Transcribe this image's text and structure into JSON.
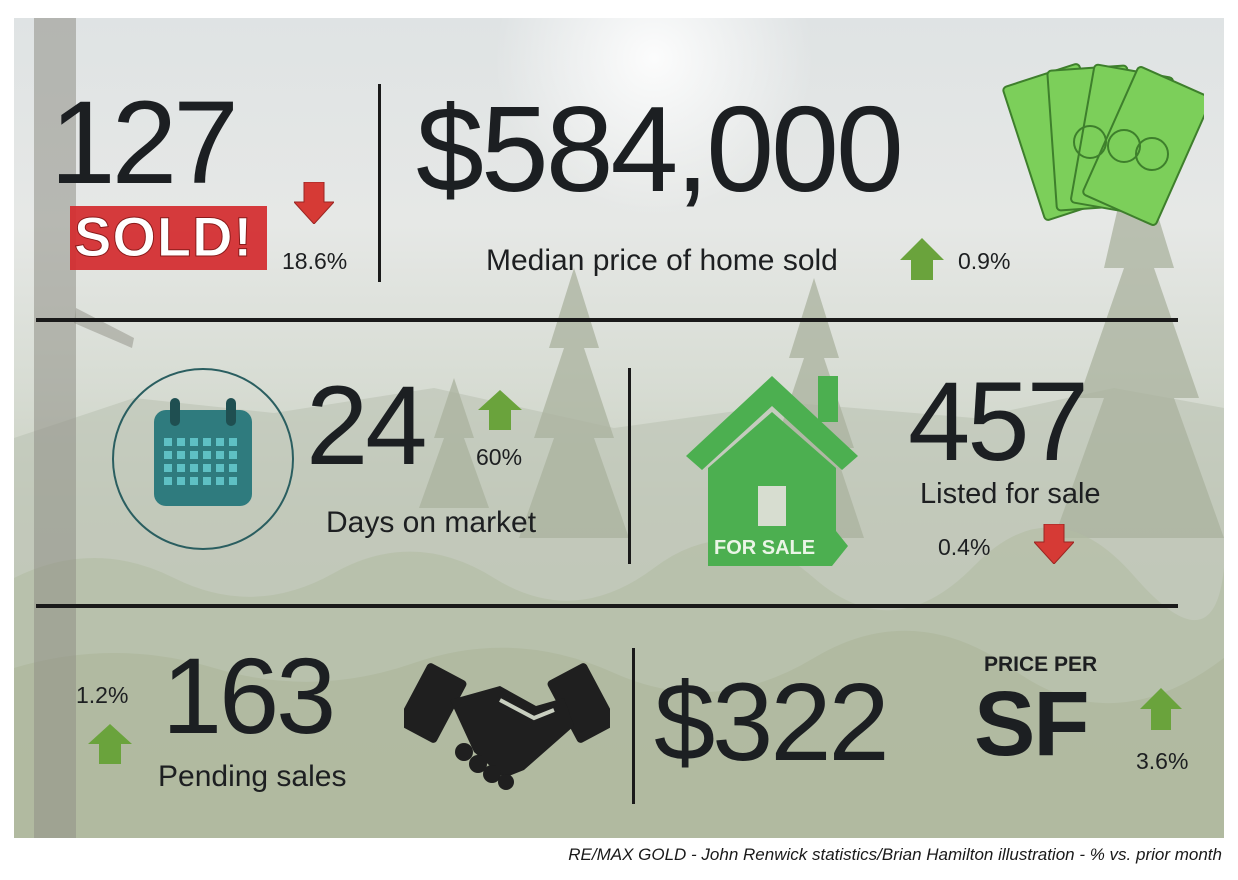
{
  "stats": {
    "sold": {
      "value": "127",
      "badge": "SOLD!",
      "change": "18.6%",
      "direction": "down"
    },
    "median_price": {
      "value": "$584,000",
      "label": "Median price of home sold",
      "change": "0.9%",
      "direction": "up"
    },
    "days_on_market": {
      "value": "24",
      "label": "Days on market",
      "change": "60%",
      "direction": "up"
    },
    "listed": {
      "value": "457",
      "label": "Listed for sale",
      "change": "0.4%",
      "direction": "down",
      "sign_text": "FOR SALE"
    },
    "pending": {
      "value": "163",
      "label": "Pending sales",
      "change": "1.2%",
      "direction": "up"
    },
    "price_per_sf": {
      "value": "$322",
      "label_top": "PRICE PER",
      "label_big": "SF",
      "change": "3.6%",
      "direction": "up"
    }
  },
  "credit": "RE/MAX GOLD - John Renwick statistics/Brian Hamilton illustration - % vs. prior month",
  "colors": {
    "up_arrow": "#6aa33c",
    "down_arrow": "#d63a35",
    "sold_badge": "#d42a2e",
    "house_green": "#4caf50",
    "money_green": "#7ccf5a",
    "calendar_teal": "#2f7b7e"
  },
  "icons": [
    "money-stack-icon",
    "calendar-icon",
    "house-for-sale-icon",
    "handshake-icon"
  ]
}
